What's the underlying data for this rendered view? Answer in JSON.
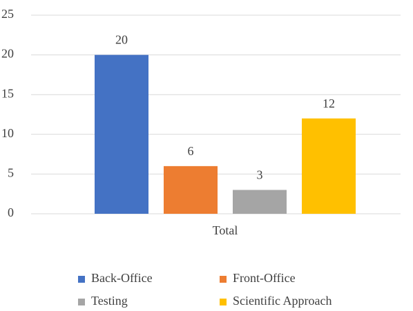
{
  "chart_data": {
    "type": "bar",
    "categories": [
      "Total"
    ],
    "series": [
      {
        "name": "Back-Office",
        "color": "#4472c4",
        "values": [
          20
        ]
      },
      {
        "name": "Front-Office",
        "color": "#ed7d31",
        "values": [
          6
        ]
      },
      {
        "name": "Testing",
        "color": "#a5a5a5",
        "values": [
          3
        ]
      },
      {
        "name": "Scientific Approach",
        "color": "#ffc000",
        "values": [
          12
        ]
      }
    ],
    "ylim": [
      0,
      25
    ],
    "yticks": [
      0,
      5,
      10,
      15,
      20,
      25
    ],
    "grid": true,
    "legend": "bottom"
  }
}
